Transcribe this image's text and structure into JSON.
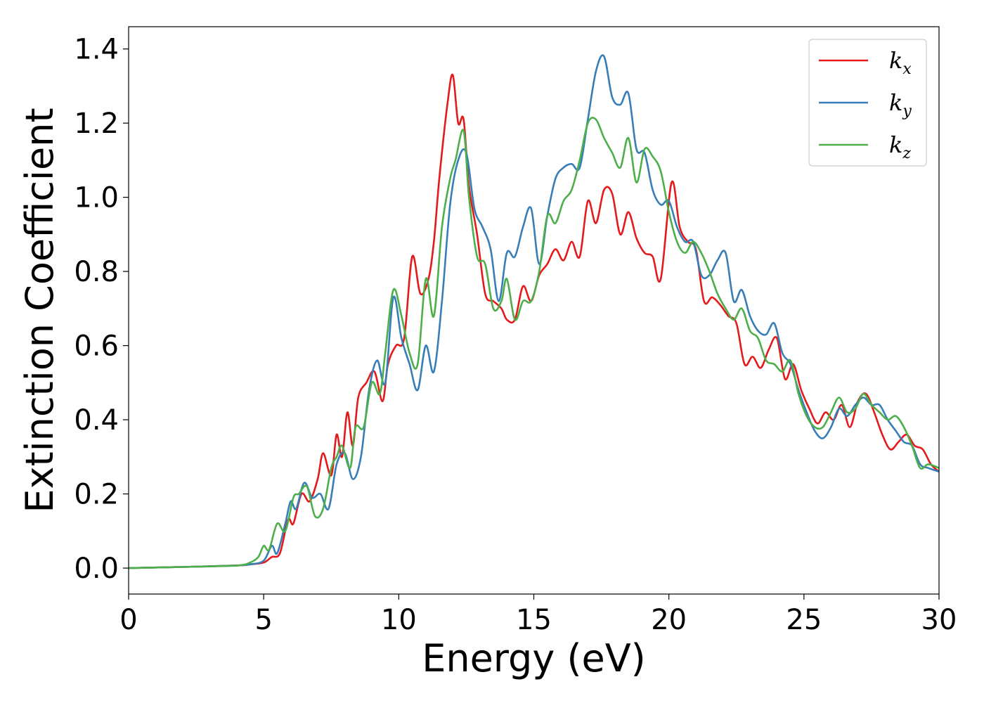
{
  "chart_data": {
    "type": "line",
    "xlabel": "Energy (eV)",
    "ylabel": "Extinction Coefficient",
    "xlim": [
      0,
      30
    ],
    "ylim": [
      -0.07,
      1.46
    ],
    "xticks": [
      "0",
      "5",
      "10",
      "15",
      "20",
      "25",
      "30"
    ],
    "yticks": [
      "0.0",
      "0.2",
      "0.4",
      "0.6",
      "0.8",
      "1.0",
      "1.2",
      "1.4"
    ],
    "grid": false,
    "legend_position": "top-right",
    "series": [
      {
        "name": "k_x",
        "label_main": "k",
        "label_sub": "x",
        "color": "#e41a1c",
        "x": [
          0,
          2,
          4,
          4.5,
          5,
          5.3,
          5.6,
          5.9,
          6.1,
          6.4,
          6.7,
          7.0,
          7.2,
          7.5,
          7.7,
          7.9,
          8.1,
          8.3,
          8.5,
          8.8,
          9.1,
          9.4,
          9.6,
          9.9,
          10.2,
          10.5,
          10.8,
          11.1,
          11.3,
          11.5,
          11.8,
          12.0,
          12.2,
          12.4,
          12.6,
          12.9,
          13.2,
          13.5,
          13.8,
          14.0,
          14.3,
          14.6,
          14.9,
          15.2,
          15.5,
          15.8,
          16.1,
          16.4,
          16.7,
          17.0,
          17.3,
          17.6,
          17.9,
          18.2,
          18.5,
          18.8,
          19.1,
          19.4,
          19.7,
          20.1,
          20.4,
          20.7,
          21.0,
          21.3,
          21.6,
          21.9,
          22.2,
          22.5,
          22.8,
          23.1,
          23.4,
          23.7,
          24.0,
          24.3,
          24.6,
          24.9,
          25.2,
          25.5,
          25.8,
          26.1,
          26.4,
          26.7,
          27.0,
          27.3,
          27.6,
          27.9,
          28.2,
          28.5,
          28.8,
          29.1,
          29.4,
          29.7,
          30
        ],
        "values": [
          0.0,
          0.003,
          0.007,
          0.01,
          0.015,
          0.03,
          0.04,
          0.13,
          0.12,
          0.2,
          0.18,
          0.24,
          0.31,
          0.25,
          0.36,
          0.3,
          0.42,
          0.33,
          0.46,
          0.5,
          0.53,
          0.45,
          0.55,
          0.6,
          0.62,
          0.84,
          0.74,
          0.78,
          0.88,
          1.05,
          1.25,
          1.33,
          1.2,
          1.21,
          1.03,
          0.9,
          0.74,
          0.72,
          0.7,
          0.67,
          0.67,
          0.76,
          0.72,
          0.79,
          0.82,
          0.86,
          0.83,
          0.88,
          0.84,
          0.99,
          0.93,
          1.02,
          1.01,
          0.9,
          0.96,
          0.89,
          0.85,
          0.84,
          0.78,
          1.04,
          0.92,
          0.88,
          0.86,
          0.72,
          0.73,
          0.71,
          0.68,
          0.66,
          0.55,
          0.57,
          0.54,
          0.59,
          0.62,
          0.51,
          0.55,
          0.48,
          0.43,
          0.39,
          0.42,
          0.4,
          0.44,
          0.38,
          0.45,
          0.47,
          0.42,
          0.36,
          0.32,
          0.34,
          0.36,
          0.33,
          0.32,
          0.28,
          0.26
        ]
      },
      {
        "name": "k_y",
        "label_main": "k",
        "label_sub": "y",
        "color": "#377eb8",
        "x": [
          0,
          2,
          4,
          4.5,
          5,
          5.3,
          5.5,
          5.8,
          6.0,
          6.2,
          6.5,
          6.8,
          7.1,
          7.4,
          7.7,
          8.0,
          8.3,
          8.6,
          8.9,
          9.2,
          9.5,
          9.8,
          10.1,
          10.4,
          10.7,
          11.0,
          11.3,
          11.6,
          11.9,
          12.2,
          12.5,
          12.8,
          13.1,
          13.4,
          13.7,
          14.0,
          14.3,
          14.6,
          14.9,
          15.2,
          15.5,
          15.8,
          16.1,
          16.4,
          16.7,
          17.0,
          17.3,
          17.6,
          17.9,
          18.2,
          18.5,
          18.8,
          19.1,
          19.4,
          19.7,
          20.0,
          20.3,
          20.6,
          20.9,
          21.2,
          21.5,
          21.8,
          22.1,
          22.4,
          22.7,
          23.0,
          23.3,
          23.6,
          23.9,
          24.2,
          24.5,
          24.8,
          25.1,
          25.4,
          25.7,
          26.0,
          26.3,
          26.6,
          26.9,
          27.2,
          27.5,
          27.8,
          28.1,
          28.4,
          28.7,
          29.0,
          29.3,
          29.6,
          30
        ],
        "values": [
          0.0,
          0.003,
          0.007,
          0.01,
          0.02,
          0.06,
          0.04,
          0.12,
          0.18,
          0.16,
          0.23,
          0.19,
          0.2,
          0.16,
          0.28,
          0.31,
          0.24,
          0.3,
          0.48,
          0.56,
          0.5,
          0.73,
          0.62,
          0.55,
          0.48,
          0.6,
          0.53,
          0.72,
          0.98,
          1.1,
          1.12,
          0.97,
          0.92,
          0.86,
          0.72,
          0.85,
          0.84,
          0.92,
          0.97,
          0.82,
          0.95,
          1.05,
          1.08,
          1.09,
          1.08,
          1.21,
          1.34,
          1.38,
          1.27,
          1.25,
          1.28,
          1.13,
          1.12,
          1.02,
          0.98,
          0.99,
          0.92,
          0.88,
          0.88,
          0.79,
          0.79,
          0.83,
          0.85,
          0.72,
          0.75,
          0.68,
          0.64,
          0.63,
          0.66,
          0.58,
          0.55,
          0.48,
          0.42,
          0.37,
          0.35,
          0.38,
          0.43,
          0.41,
          0.44,
          0.46,
          0.44,
          0.44,
          0.4,
          0.37,
          0.34,
          0.33,
          0.28,
          0.27,
          0.26
        ]
      },
      {
        "name": "k_z",
        "label_main": "k",
        "label_sub": "z",
        "color": "#4daf4a",
        "x": [
          0,
          2,
          4,
          4.5,
          4.8,
          5.0,
          5.2,
          5.5,
          5.8,
          6.1,
          6.3,
          6.6,
          6.9,
          7.2,
          7.5,
          7.7,
          7.9,
          8.2,
          8.4,
          8.7,
          9.0,
          9.3,
          9.5,
          9.8,
          10.1,
          10.4,
          10.7,
          11.0,
          11.3,
          11.6,
          11.9,
          12.1,
          12.4,
          12.6,
          12.9,
          13.2,
          13.5,
          13.8,
          14.0,
          14.3,
          14.6,
          14.9,
          15.2,
          15.5,
          15.8,
          16.1,
          16.4,
          16.7,
          17.0,
          17.3,
          17.6,
          17.9,
          18.2,
          18.5,
          18.8,
          19.1,
          19.4,
          19.7,
          20.0,
          20.3,
          20.6,
          20.9,
          21.2,
          21.5,
          21.8,
          22.1,
          22.4,
          22.7,
          23.0,
          23.3,
          23.6,
          23.9,
          24.2,
          24.5,
          24.8,
          25.1,
          25.4,
          25.7,
          26.0,
          26.3,
          26.6,
          26.9,
          27.2,
          27.5,
          27.8,
          28.1,
          28.4,
          28.7,
          29.0,
          29.3,
          29.6,
          30
        ],
        "values": [
          0.0,
          0.003,
          0.007,
          0.015,
          0.03,
          0.06,
          0.05,
          0.12,
          0.1,
          0.19,
          0.2,
          0.22,
          0.14,
          0.16,
          0.27,
          0.3,
          0.33,
          0.27,
          0.38,
          0.38,
          0.5,
          0.47,
          0.58,
          0.75,
          0.68,
          0.58,
          0.55,
          0.78,
          0.68,
          0.92,
          1.05,
          1.1,
          1.18,
          1.0,
          0.84,
          0.82,
          0.7,
          0.72,
          0.78,
          0.67,
          0.72,
          0.72,
          0.8,
          0.95,
          0.93,
          0.99,
          1.02,
          1.1,
          1.2,
          1.21,
          1.16,
          1.12,
          1.08,
          1.16,
          1.04,
          1.13,
          1.11,
          1.07,
          0.96,
          0.88,
          0.85,
          0.88,
          0.85,
          0.8,
          0.74,
          0.7,
          0.67,
          0.7,
          0.64,
          0.62,
          0.56,
          0.55,
          0.53,
          0.56,
          0.47,
          0.41,
          0.38,
          0.38,
          0.42,
          0.46,
          0.42,
          0.43,
          0.47,
          0.44,
          0.42,
          0.4,
          0.41,
          0.38,
          0.33,
          0.27,
          0.28,
          0.27
        ]
      }
    ]
  }
}
